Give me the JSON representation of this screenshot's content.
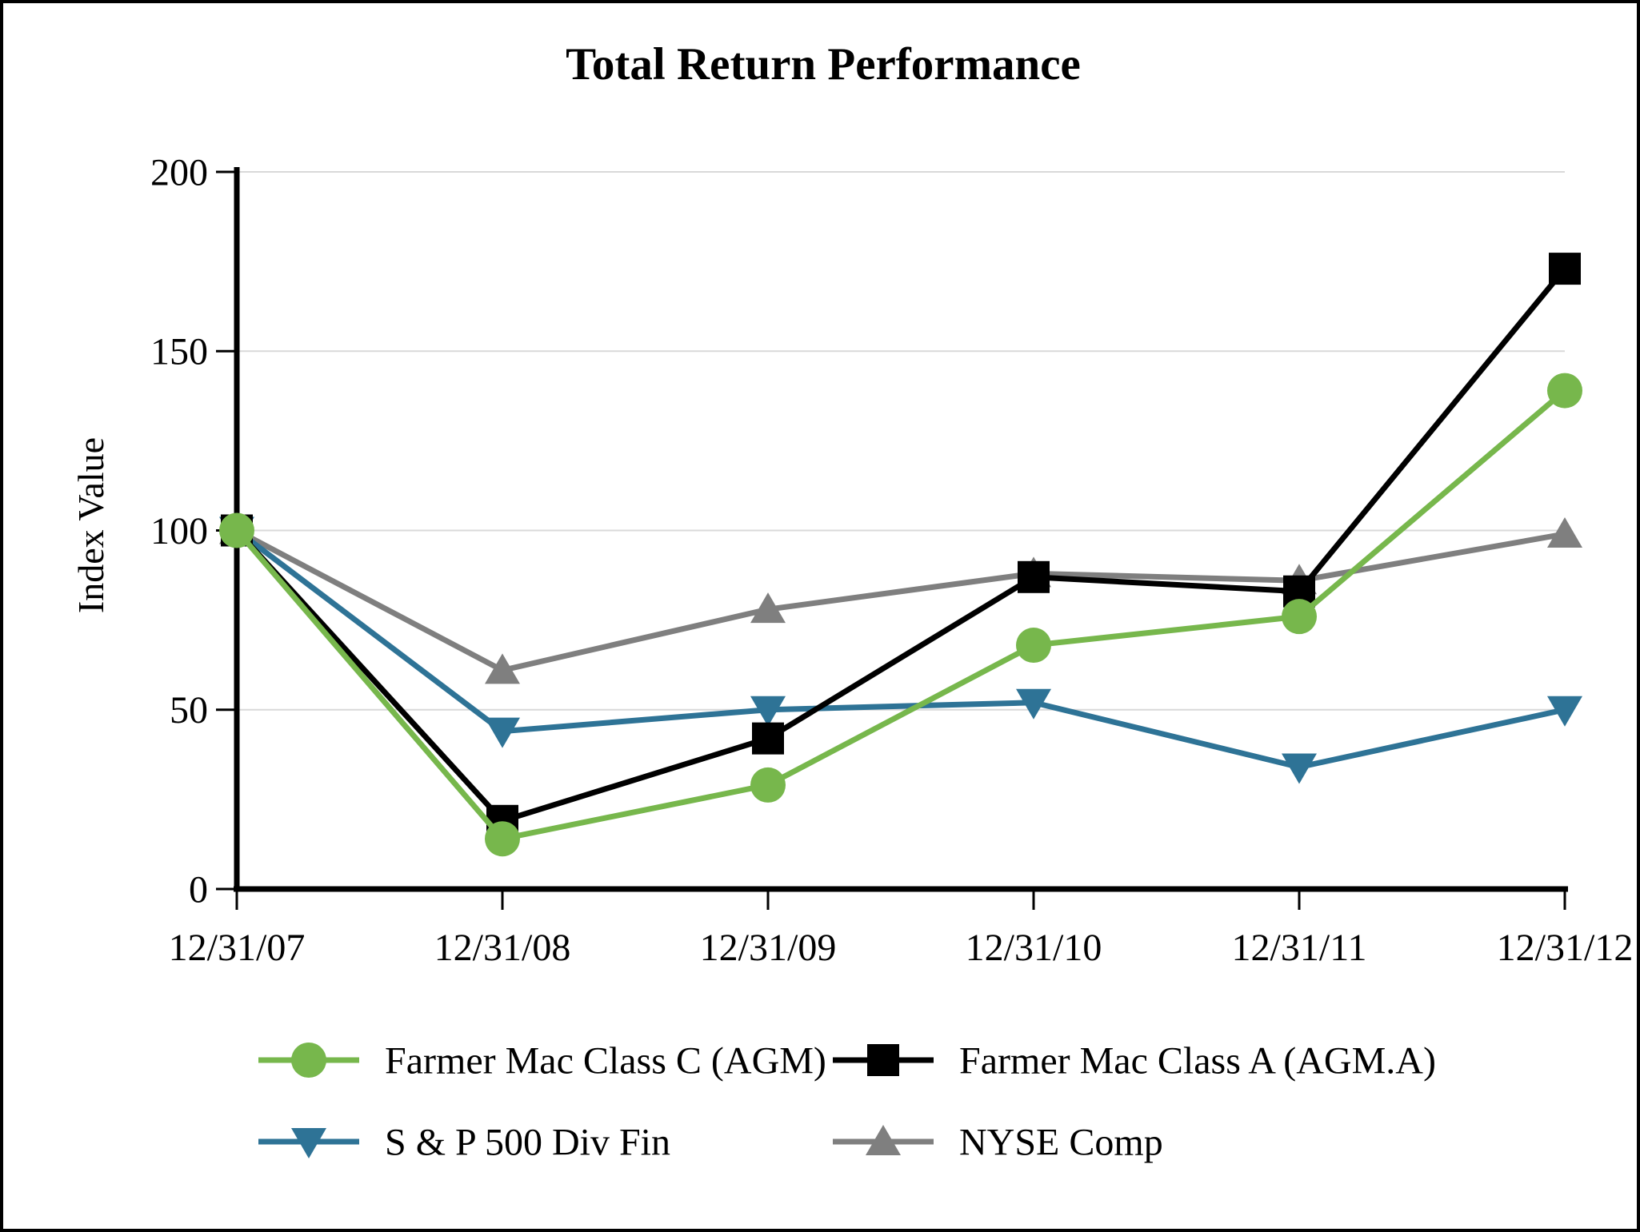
{
  "title": "Total Return Performance",
  "colors": {
    "background": "#FFFFFF",
    "border": "#000000",
    "axis": "#000000",
    "gridline": "#D9D9D9",
    "class_c_green": "#77B74C",
    "class_a_black": "#000000",
    "sp500_blue": "#2E7396",
    "nyse_gray": "#7F7F7F"
  },
  "chart_data": {
    "type": "line",
    "title": "Total Return Performance",
    "xlabel": "",
    "ylabel": "Index Value",
    "categories": [
      "12/31/07",
      "12/31/08",
      "12/31/09",
      "12/31/10",
      "12/31/11",
      "12/31/12"
    ],
    "ylim": [
      0,
      200
    ],
    "yticks": [
      0,
      50,
      100,
      150,
      200
    ],
    "grid": true,
    "legend_position": "bottom-two-columns",
    "series": [
      {
        "name": "Farmer Mac Class C (AGM)",
        "marker": "circle",
        "color": "#77B74C",
        "values": [
          100,
          14,
          29,
          68,
          76,
          139
        ]
      },
      {
        "name": "Farmer Mac Class A (AGM.A)",
        "marker": "square",
        "color": "#000000",
        "values": [
          100,
          19,
          42,
          87,
          83,
          173
        ]
      },
      {
        "name": "S & P 500 Div Fin",
        "marker": "triangle-down",
        "color": "#2E7396",
        "values": [
          100,
          44,
          50,
          52,
          34,
          50
        ]
      },
      {
        "name": "NYSE Comp",
        "marker": "triangle-up",
        "color": "#7F7F7F",
        "values": [
          100,
          61,
          78,
          88,
          86,
          99
        ]
      }
    ]
  }
}
